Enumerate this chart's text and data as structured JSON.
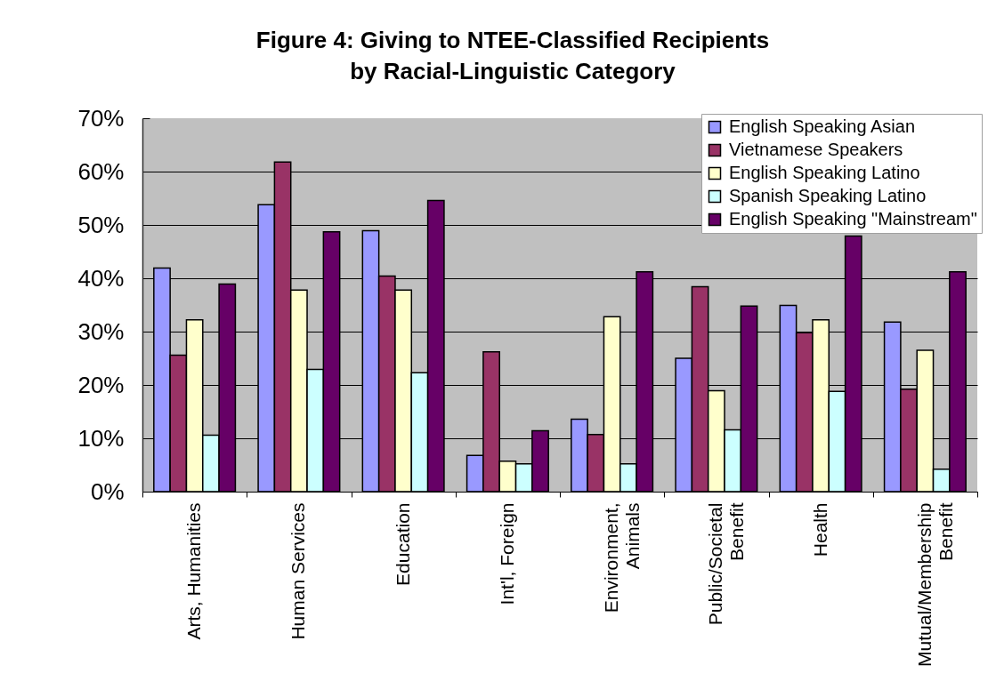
{
  "chart_data": {
    "type": "bar",
    "title": "Figure 4:  Giving to NTEE-Classified Recipients\nby Racial-Linguistic Category",
    "categories": [
      "Arts, Humanities",
      "Human Services",
      "Education",
      "Int'l, Foreign",
      "Environment, Animals",
      "Public/Societal Benefit",
      "Health",
      "Mutual/Membership Benefit"
    ],
    "series": [
      {
        "name": "English Speaking Asian",
        "color": "#9999ff",
        "values": [
          41.9,
          53.8,
          48.9,
          6.8,
          13.6,
          25.0,
          34.9,
          31.8
        ]
      },
      {
        "name": "Vietnamese Speakers",
        "color": "#993366",
        "values": [
          25.6,
          61.8,
          40.4,
          26.2,
          10.7,
          38.4,
          29.8,
          19.2
        ]
      },
      {
        "name": "English Speaking Latino",
        "color": "#ffffcc",
        "values": [
          32.2,
          37.8,
          37.8,
          5.7,
          32.8,
          18.9,
          32.2,
          26.5
        ]
      },
      {
        "name": "Spanish Speaking Latino",
        "color": "#ccffff",
        "values": [
          10.6,
          22.9,
          22.3,
          5.2,
          5.2,
          11.6,
          18.8,
          4.2
        ]
      },
      {
        "name": "English Speaking \"Mainstream\"",
        "color": "#660066",
        "values": [
          38.9,
          48.7,
          54.6,
          11.4,
          41.2,
          34.8,
          47.9,
          41.2
        ]
      }
    ],
    "ylim": [
      0,
      70
    ],
    "yticks": [
      {
        "value": 0,
        "label": "0%"
      },
      {
        "value": 10,
        "label": "10%"
      },
      {
        "value": 20,
        "label": "20%"
      },
      {
        "value": 30,
        "label": "30%"
      },
      {
        "value": 40,
        "label": "40%"
      },
      {
        "value": 50,
        "label": "50%"
      },
      {
        "value": 60,
        "label": "60%"
      },
      {
        "value": 70,
        "label": "70%"
      }
    ],
    "grid": "y",
    "legend": "top right"
  }
}
